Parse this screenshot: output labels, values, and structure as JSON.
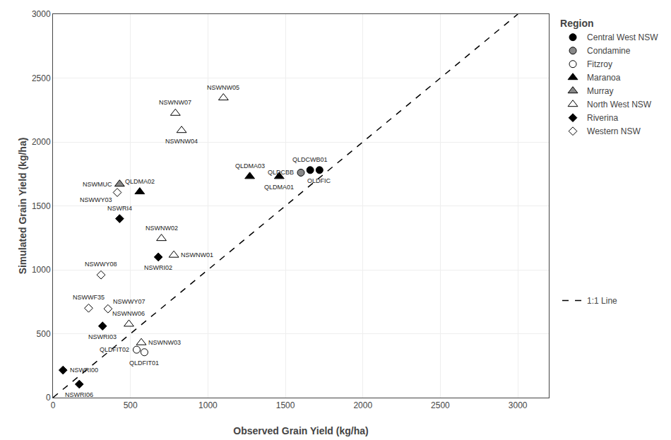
{
  "chart_data": {
    "type": "scatter",
    "xlabel": "Observed Grain Yield (kg/ha)",
    "ylabel": "Simulated Grain Yield (kg/ha)",
    "xlim": [
      0,
      3200
    ],
    "ylim": [
      0,
      3000
    ],
    "xticks": [
      0,
      500,
      1000,
      1500,
      2000,
      2500,
      3000
    ],
    "yticks": [
      0,
      500,
      1000,
      1500,
      2000,
      2500,
      3000
    ],
    "grid": true,
    "legend": "right",
    "legend_title": "Region",
    "series": [
      {
        "name": "Central West NSW",
        "type": "scatter",
        "marker": "circle",
        "color": "#000000",
        "x": [
          1660,
          1720
        ],
        "values": [
          1780,
          1780
        ],
        "labels": [
          "QLDCWB01",
          "OLDFIC"
        ]
      },
      {
        "name": "Condamine",
        "type": "scatter",
        "marker": "circle",
        "color": "#888888",
        "x": [
          1600
        ],
        "values": [
          1760
        ],
        "labels": [
          "QLDCBB"
        ]
      },
      {
        "name": "Fitzroy",
        "type": "scatter",
        "marker": "circle",
        "color": "#ffffff",
        "x": [
          540,
          590
        ],
        "values": [
          375,
          355
        ],
        "labels": [
          "QLDFIT02",
          "QLDFIT01"
        ]
      },
      {
        "name": "Maranoa",
        "type": "scatter",
        "marker": "triangle-up",
        "color": "#000000",
        "x": [
          560,
          1270,
          1460
        ],
        "values": [
          1610,
          1730,
          1730
        ],
        "labels": [
          "QLDMA02",
          "QLDMA03",
          "QLDMA01"
        ]
      },
      {
        "name": "Murray",
        "type": "scatter",
        "marker": "triangle-up",
        "color": "#888888",
        "x": [
          430
        ],
        "values": [
          1670
        ],
        "labels": [
          "NSWMUC"
        ]
      },
      {
        "name": "North West NSW",
        "type": "scatter",
        "marker": "triangle-up",
        "color": "#ffffff",
        "x": [
          790,
          830,
          1100,
          700,
          780,
          490,
          570
        ],
        "values": [
          2225,
          2090,
          2345,
          1245,
          1115,
          575,
          430
        ],
        "labels": [
          "NSWNW07",
          "NSWNW04",
          "NSWNW05",
          "NSWNW02",
          "NSWNW01",
          "NSWNW06",
          "NSWNW03"
        ]
      },
      {
        "name": "Riverina",
        "type": "scatter",
        "marker": "diamond",
        "color": "#000000",
        "x": [
          430,
          680,
          320,
          65,
          170
        ],
        "values": [
          1400,
          1100,
          560,
          215,
          105
        ],
        "labels": [
          "NSWRI4",
          "NSWRI02",
          "NSWRI03",
          "NSWRI00",
          "NSWRI06"
        ]
      },
      {
        "name": "Western NSW",
        "type": "scatter",
        "marker": "diamond",
        "color": "#ffffff",
        "x": [
          415,
          310,
          230,
          355
        ],
        "values": [
          1605,
          960,
          700,
          695
        ],
        "labels": [
          "NSWWY03",
          "NSWWY08",
          "NSWWF35",
          "NSWWY07"
        ]
      },
      {
        "name": "1:1 Line",
        "type": "line",
        "line_style": "dashed",
        "color": "#000000",
        "x": [
          0,
          3000
        ],
        "values": [
          0,
          3000
        ]
      }
    ]
  }
}
